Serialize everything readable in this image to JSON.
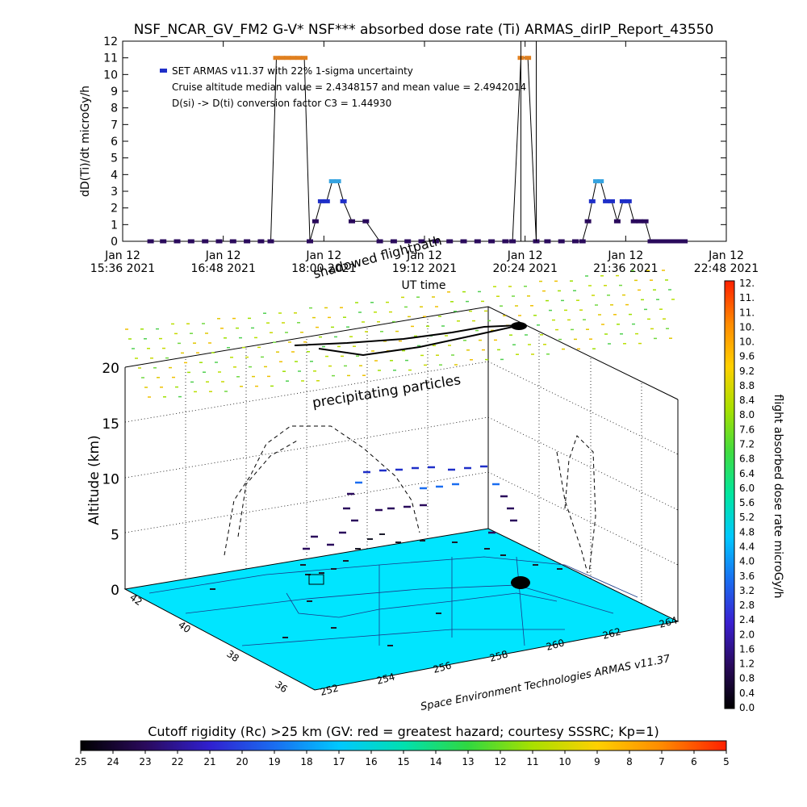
{
  "colors": {
    "grid": "#000000",
    "series_low": "#2a0a5c",
    "series_mid": "#1f2fc8",
    "series_high": "#35a3e0",
    "series_peak": "#e08020",
    "floor": "#00e5ff",
    "colorbar_stops": [
      "#000000",
      "#2a0a5c",
      "#3a1fd0",
      "#1a6df0",
      "#00c8ff",
      "#00e6a0",
      "#40dc40",
      "#a8e000",
      "#ffd000",
      "#ff8a00",
      "#ff2000"
    ],
    "rigidity_stops": [
      "#000000",
      "#2a0a5c",
      "#3020d0",
      "#1a6df0",
      "#00c8ff",
      "#00e0b0",
      "#30d840",
      "#a8e000",
      "#ffd000",
      "#ff8a00",
      "#ff2000"
    ]
  },
  "chart_data": [
    {
      "type": "line",
      "title": "NSF_NCAR_GV_FM2 G-V* NSF*** absorbed dose rate (Ti) ARMAS_dirIP_Report_43550",
      "xlabel": "UT time",
      "ylabel": "dD(Ti)/dt microGy/h",
      "ylim": [
        0,
        12
      ],
      "yticks": [
        "0",
        "1",
        "2",
        "3",
        "4",
        "5",
        "6",
        "7",
        "8",
        "9",
        "10",
        "11",
        "12"
      ],
      "xticks": [
        {
          "date": "Jan 12",
          "time": "15:36 2021"
        },
        {
          "date": "Jan 12",
          "time": "16:48 2021"
        },
        {
          "date": "Jan 12",
          "time": "18:00 2021"
        },
        {
          "date": "Jan 12",
          "time": "19:12 2021"
        },
        {
          "date": "Jan 12",
          "time": "20:24 2021"
        },
        {
          "date": "Jan 12",
          "time": "21:36 2021"
        },
        {
          "date": "Jan 12",
          "time": "22:48 2021"
        }
      ],
      "legend": {
        "series": "SET ARMAS v11.37 with 22% 1-sigma uncertainty",
        "note1": "Cruise altitude median value = 2.4348157 and mean value = 2.4942014",
        "note2": "D(si) -> D(ti) conversion factor C3 = 1.44930"
      },
      "series": [
        {
          "x": [
            "15:56",
            "16:05",
            "16:15",
            "16:25",
            "16:35",
            "16:45",
            "16:55",
            "17:05",
            "17:15",
            "17:22",
            "17:26",
            "17:30",
            "17:34",
            "17:38",
            "17:42",
            "17:46",
            "17:50",
            "17:54",
            "17:58",
            "18:02",
            "18:06",
            "18:10",
            "18:14",
            "18:20",
            "18:30",
            "18:40",
            "18:50",
            "19:00",
            "19:10",
            "19:20",
            "19:30",
            "19:40",
            "19:50",
            "20:00",
            "20:10",
            "20:15",
            "20:21",
            "20:26",
            "20:32",
            "20:40",
            "20:50",
            "21:00",
            "21:05",
            "21:09",
            "21:12",
            "21:15",
            "21:18",
            "21:22",
            "21:26",
            "21:30",
            "21:34",
            "21:38",
            "21:42",
            "21:46",
            "21:50",
            "21:54",
            "21:58",
            "22:02",
            "22:06",
            "22:10",
            "22:14",
            "22:18"
          ],
          "y": [
            0,
            0,
            0,
            0,
            0,
            0,
            0,
            0,
            0,
            0,
            11,
            11,
            11,
            11,
            11,
            11,
            0,
            1.2,
            2.4,
            2.4,
            3.6,
            3.6,
            2.4,
            1.2,
            1.2,
            0,
            0,
            0,
            0,
            0,
            0,
            0,
            0,
            0,
            0,
            0,
            11,
            11,
            0,
            0,
            0,
            0,
            0,
            1.2,
            2.4,
            3.6,
            3.6,
            2.4,
            2.4,
            1.2,
            2.4,
            2.4,
            1.2,
            1.2,
            1.2,
            0,
            0,
            0,
            0,
            0,
            0,
            0
          ]
        }
      ]
    },
    {
      "type": "scatter",
      "title": "",
      "zlabel": "Altitude (km)",
      "zticks": [
        "0",
        "5",
        "10",
        "15",
        "20"
      ],
      "yticks": [
        "36",
        "38",
        "40",
        "42"
      ],
      "xticks": [
        "252",
        "254",
        "256",
        "258",
        "260",
        "262",
        "264"
      ],
      "annotations": [
        "shadowed flightpath",
        "precipitating particles",
        "Space Environment Technologies ARMAS v11.37"
      ],
      "colorbar": {
        "label": "flight absorbed dose rate microGy/h",
        "ticks": [
          "0.0",
          "0.4",
          "0.8",
          "1.2",
          "1.6",
          "2.0",
          "2.4",
          "2.8",
          "3.2",
          "3.6",
          "4.0",
          "4.4",
          "4.8",
          "5.2",
          "5.6",
          "6.0",
          "6.4",
          "6.8",
          "7.2",
          "7.6",
          "8.0",
          "8.4",
          "8.8",
          "9.2",
          "9.6",
          "10.",
          "10.",
          "11.",
          "11.",
          "12."
        ]
      },
      "rigidity_bar": {
        "label": "Cutoff rigidity (Rc) >25 km (GV: red = greatest hazard; courtesy SSSRC; Kp=1)",
        "ticks": [
          "25",
          "24",
          "23",
          "22",
          "21",
          "20",
          "19",
          "18",
          "17",
          "16",
          "15",
          "14",
          "13",
          "12",
          "11",
          "10",
          "9",
          "8",
          "7",
          "6",
          "5"
        ]
      }
    }
  ]
}
